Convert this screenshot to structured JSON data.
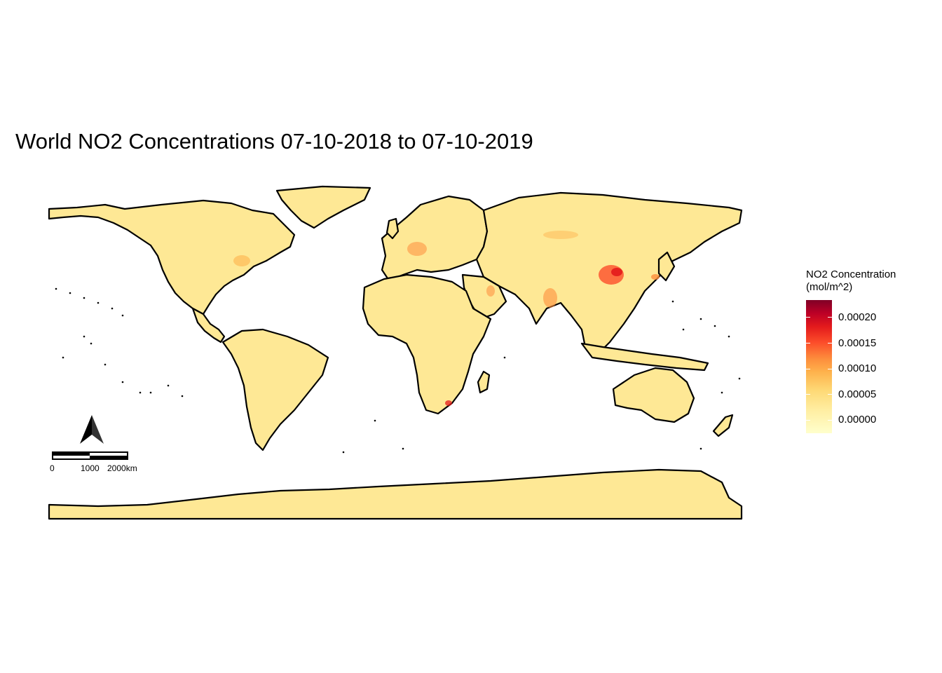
{
  "map": {
    "title": "World NO2 Concentrations 07-10-2018 to 07-10-2019",
    "land_color": "#fee895",
    "border_color": "#000000"
  },
  "legend": {
    "title_line1": "NO2 Concentration",
    "title_line2": "(mol/m^2)",
    "labels": [
      "0.00020",
      "0.00015",
      "0.00010",
      "0.00005",
      "0.00000"
    ],
    "palette": [
      "#ffffcc",
      "#ffeda0",
      "#fed976",
      "#feb24c",
      "#fd8d3c",
      "#fc4e2a",
      "#e31a1c",
      "#bd0026",
      "#800026"
    ]
  },
  "scale_bar": {
    "labels": [
      "0",
      "1000",
      "2000km"
    ]
  },
  "north_arrow": {
    "icon": "north-arrow-icon"
  }
}
